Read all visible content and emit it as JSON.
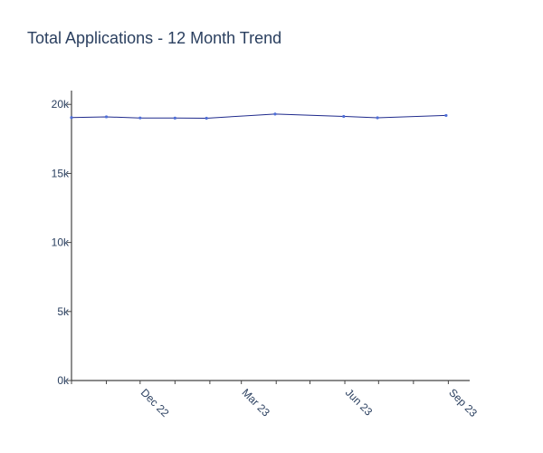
{
  "chart_data": {
    "type": "line",
    "title": "Total Applications - 12 Month Trend",
    "xlabel": "",
    "ylabel": "",
    "ylim": [
      0,
      21000
    ],
    "yticks": [
      0,
      5000,
      10000,
      15000,
      20000
    ],
    "ytick_labels": [
      "0k",
      "5k",
      "10k",
      "15k",
      "20k"
    ],
    "xticks": [
      "2022-10-01",
      "2022-11-01",
      "2022-12-01",
      "2023-01-01",
      "2023-02-01",
      "2023-03-01",
      "2023-04-01",
      "2023-05-01",
      "2023-06-01",
      "2023-07-01",
      "2023-08-01",
      "2023-09-01"
    ],
    "xtick_labels": [
      "",
      "",
      "Dec 22",
      "",
      "",
      "Mar 23",
      "",
      "",
      "Jun 23",
      "",
      "",
      "Sep 23"
    ],
    "xlim": [
      "2022-10-01",
      "2023-09-20"
    ],
    "grid": false,
    "line_color": "#1f2a8c",
    "marker_color": "#4f6fd8",
    "axis_color": "#444444",
    "series": [
      {
        "x": [
          "2022-10-01",
          "2022-11-01",
          "2022-12-01",
          "2023-01-01",
          "2023-01-29",
          "2023-03-31",
          "2023-05-31",
          "2023-06-30",
          "2023-08-30"
        ],
        "values": [
          19050,
          19100,
          19020,
          19010,
          19000,
          19300,
          19130,
          19030,
          19200
        ]
      }
    ]
  }
}
